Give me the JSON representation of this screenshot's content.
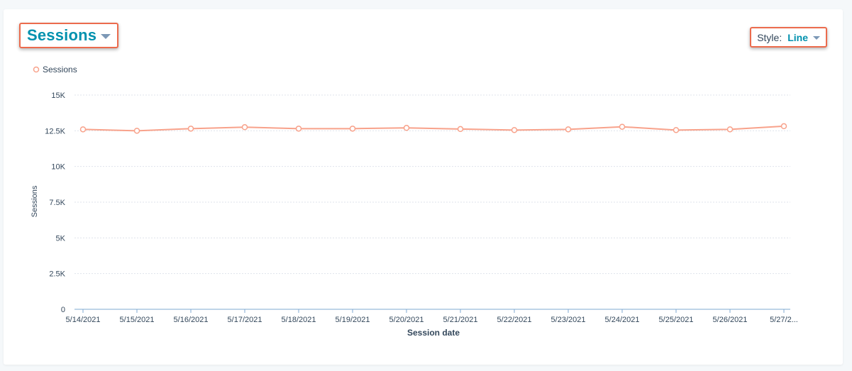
{
  "header": {
    "metric_label": "Sessions",
    "style_prefix": "Style:",
    "style_value": "Line"
  },
  "icons": {
    "metric_caret": "caret-down-icon",
    "style_caret": "caret-down-icon",
    "legend_marker": "circle-marker-icon"
  },
  "colors": {
    "series": "#f8a28b",
    "accent": "#0091ae",
    "highlight": "#ec6b4d"
  },
  "chart_data": {
    "type": "line",
    "x": [
      "5/14/2021",
      "5/15/2021",
      "5/16/2021",
      "5/17/2021",
      "5/18/2021",
      "5/19/2021",
      "5/20/2021",
      "5/21/2021",
      "5/22/2021",
      "5/23/2021",
      "5/24/2021",
      "5/25/2021",
      "5/26/2021",
      "5/27/2..."
    ],
    "series": [
      {
        "name": "Sessions",
        "values": [
          12600,
          12500,
          12650,
          12750,
          12650,
          12650,
          12700,
          12620,
          12550,
          12600,
          12780,
          12550,
          12600,
          12820
        ]
      }
    ],
    "xlabel": "Session date",
    "ylabel": "Sessions",
    "ylim": [
      0,
      15000
    ],
    "yticks": [
      0,
      2500,
      5000,
      7500,
      10000,
      12500,
      15000
    ],
    "ytick_labels": [
      "0",
      "2.5K",
      "5K",
      "7.5K",
      "10K",
      "12.5K",
      "15K"
    ],
    "grid": true,
    "legend": "top-left"
  }
}
